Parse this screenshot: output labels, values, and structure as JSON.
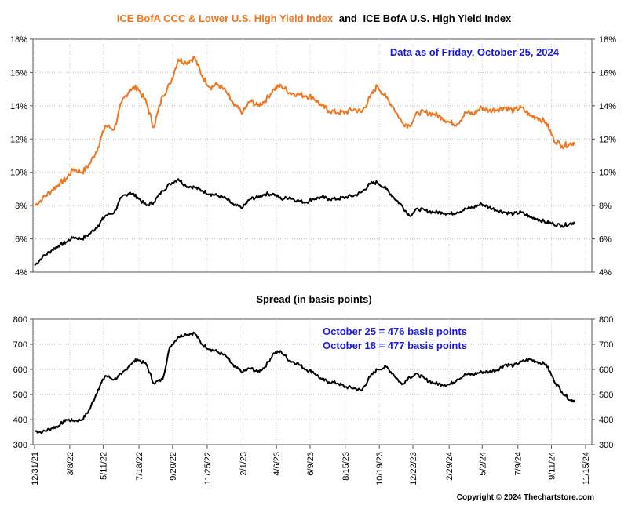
{
  "chart_data": [
    {
      "type": "line",
      "title_part1": "ICE BofA CCC & Lower U.S. High Yield Index",
      "title_joiner": "and",
      "title_part2": "ICE BofA U.S. High Yield Index",
      "annotation": "Data as of Friday, October 25, 2024",
      "ylim": [
        4,
        18
      ],
      "yticks": [
        "4%",
        "6%",
        "8%",
        "10%",
        "12%",
        "14%",
        "16%",
        "18%"
      ],
      "colors": {
        "ccc": "#ee7722",
        "hy": "#000000",
        "annotation": "#1a1ad4"
      },
      "series": [
        {
          "name": "ICE BofA CCC & Lower U.S. High Yield Index",
          "x": [
            "12/31/21",
            "1/15/22",
            "2/1/22",
            "2/15/22",
            "3/1/22",
            "3/15/22",
            "4/1/22",
            "4/15/22",
            "5/1/22",
            "5/15/22",
            "6/1/22",
            "6/15/22",
            "7/1/22",
            "7/15/22",
            "8/1/22",
            "8/15/22",
            "9/1/22",
            "9/15/22",
            "10/1/22",
            "10/15/22",
            "11/1/22",
            "11/15/22",
            "12/1/22",
            "12/15/22",
            "1/1/23",
            "1/15/23",
            "2/1/23",
            "2/15/23",
            "3/1/23",
            "3/15/23",
            "4/1/23",
            "4/15/23",
            "5/1/23",
            "5/15/23",
            "6/1/23",
            "6/15/23",
            "7/1/23",
            "7/15/23",
            "8/1/23",
            "8/15/23",
            "9/1/23",
            "9/15/23",
            "10/1/23",
            "10/15/23",
            "11/1/23",
            "11/15/23",
            "12/1/23",
            "12/15/23",
            "1/1/24",
            "1/15/24",
            "2/1/24",
            "2/15/24",
            "3/1/24",
            "3/15/24",
            "4/1/24",
            "4/15/24",
            "5/1/24",
            "5/15/24",
            "6/1/24",
            "6/15/24",
            "7/1/24",
            "7/15/24",
            "8/1/24",
            "8/15/24",
            "9/1/24",
            "9/15/24",
            "10/1/24",
            "10/15/24",
            "10/25/24"
          ],
          "values": [
            8.0,
            8.4,
            8.9,
            9.3,
            9.6,
            10.2,
            10.0,
            10.5,
            11.5,
            12.8,
            12.6,
            14.2,
            15.0,
            15.1,
            14.2,
            12.7,
            14.6,
            15.3,
            16.8,
            16.6,
            16.9,
            15.8,
            15.1,
            15.3,
            14.8,
            14.0,
            13.6,
            14.3,
            14.0,
            14.3,
            15.0,
            15.2,
            14.8,
            14.7,
            14.6,
            14.5,
            14.0,
            13.7,
            13.6,
            13.6,
            13.8,
            13.6,
            14.5,
            15.2,
            14.5,
            13.9,
            13.0,
            12.8,
            13.6,
            13.6,
            13.5,
            13.3,
            13.0,
            12.9,
            13.6,
            13.5,
            13.9,
            13.7,
            13.8,
            13.9,
            13.7,
            13.9,
            13.4,
            13.3,
            13.0,
            12.0,
            11.6,
            11.7,
            11.8
          ]
        },
        {
          "name": "ICE BofA U.S. High Yield Index",
          "x": [
            "12/31/21",
            "1/15/22",
            "2/1/22",
            "2/15/22",
            "3/1/22",
            "3/15/22",
            "4/1/22",
            "4/15/22",
            "5/1/22",
            "5/15/22",
            "6/1/22",
            "6/15/22",
            "7/1/22",
            "7/15/22",
            "8/1/22",
            "8/15/22",
            "9/1/22",
            "9/15/22",
            "10/1/22",
            "10/15/22",
            "11/1/22",
            "11/15/22",
            "12/1/22",
            "12/15/22",
            "1/1/23",
            "1/15/23",
            "2/1/23",
            "2/15/23",
            "3/1/23",
            "3/15/23",
            "4/1/23",
            "4/15/23",
            "5/1/23",
            "5/15/23",
            "6/1/23",
            "6/15/23",
            "7/1/23",
            "7/15/23",
            "8/1/23",
            "8/15/23",
            "9/1/23",
            "9/15/23",
            "10/1/23",
            "10/15/23",
            "11/1/23",
            "11/15/23",
            "12/1/23",
            "12/15/23",
            "1/1/24",
            "1/15/24",
            "2/1/24",
            "2/15/24",
            "3/1/24",
            "3/15/24",
            "4/1/24",
            "4/15/24",
            "5/1/24",
            "5/15/24",
            "6/1/24",
            "6/15/24",
            "7/1/24",
            "7/15/24",
            "8/1/24",
            "8/15/24",
            "9/1/24",
            "9/15/24",
            "10/1/24",
            "10/15/24",
            "10/25/24"
          ],
          "values": [
            4.4,
            4.9,
            5.3,
            5.6,
            5.8,
            6.1,
            6.0,
            6.3,
            6.8,
            7.4,
            7.6,
            8.5,
            8.8,
            8.5,
            8.0,
            8.2,
            8.9,
            9.3,
            9.6,
            9.2,
            9.1,
            8.9,
            8.7,
            8.6,
            8.4,
            8.0,
            7.9,
            8.4,
            8.5,
            8.7,
            8.7,
            8.4,
            8.5,
            8.3,
            8.2,
            8.4,
            8.5,
            8.4,
            8.4,
            8.5,
            8.6,
            8.8,
            9.3,
            9.4,
            9.0,
            8.5,
            8.0,
            7.4,
            7.8,
            7.7,
            7.6,
            7.6,
            7.5,
            7.6,
            7.8,
            7.9,
            8.1,
            7.9,
            7.7,
            7.6,
            7.5,
            7.6,
            7.3,
            7.2,
            7.0,
            6.9,
            6.8,
            6.9,
            7.0
          ]
        }
      ]
    },
    {
      "type": "line",
      "title": "Spread (in basis points)",
      "annotation_lines": [
        "October 25 = 476 basis points",
        "October 18 = 477 basis points"
      ],
      "ylim": [
        300,
        800
      ],
      "yticks": [
        "300",
        "400",
        "500",
        "600",
        "700",
        "800"
      ],
      "xticks": [
        "12/31/21",
        "3/8/22",
        "5/11/22",
        "7/18/22",
        "9/20/22",
        "11/25/22",
        "2/1/23",
        "4/6/23",
        "6/9/23",
        "8/15/23",
        "10/19/23",
        "12/22/23",
        "2/29/24",
        "5/2/24",
        "7/9/24",
        "9/11/24",
        "11/15/24"
      ],
      "xlim": [
        "12/31/21",
        "11/15/24"
      ],
      "colors": {
        "line": "#000000",
        "annotation": "#1a1ad4"
      },
      "series": [
        {
          "name": "Spread",
          "x": [
            "12/31/21",
            "1/15/22",
            "2/1/22",
            "2/15/22",
            "3/1/22",
            "3/15/22",
            "4/1/22",
            "4/15/22",
            "5/1/22",
            "5/15/22",
            "6/1/22",
            "6/15/22",
            "7/1/22",
            "7/15/22",
            "8/1/22",
            "8/15/22",
            "9/1/22",
            "9/15/22",
            "10/1/22",
            "10/15/22",
            "11/1/22",
            "11/15/22",
            "12/1/22",
            "12/15/22",
            "1/1/23",
            "1/15/23",
            "2/1/23",
            "2/15/23",
            "3/1/23",
            "3/15/23",
            "4/1/23",
            "4/15/23",
            "5/1/23",
            "5/15/23",
            "6/1/23",
            "6/15/23",
            "7/1/23",
            "7/15/23",
            "8/1/23",
            "8/15/23",
            "9/1/23",
            "9/15/23",
            "10/1/23",
            "10/15/23",
            "11/1/23",
            "11/15/23",
            "12/1/23",
            "12/15/23",
            "1/1/24",
            "1/15/24",
            "2/1/24",
            "2/15/24",
            "3/1/24",
            "3/15/24",
            "4/1/24",
            "4/15/24",
            "5/1/24",
            "5/15/24",
            "6/1/24",
            "6/15/24",
            "7/1/24",
            "7/15/24",
            "8/1/24",
            "8/15/24",
            "9/1/24",
            "9/15/24",
            "10/1/24",
            "10/18/24",
            "10/25/24"
          ],
          "values": [
            355,
            350,
            365,
            375,
            400,
            395,
            400,
            440,
            520,
            575,
            560,
            580,
            620,
            640,
            620,
            545,
            560,
            690,
            730,
            740,
            745,
            700,
            680,
            670,
            650,
            610,
            590,
            605,
            590,
            610,
            665,
            670,
            635,
            625,
            600,
            590,
            560,
            550,
            545,
            530,
            525,
            515,
            570,
            600,
            610,
            580,
            540,
            570,
            580,
            560,
            545,
            540,
            540,
            560,
            580,
            580,
            590,
            590,
            600,
            620,
            615,
            630,
            640,
            630,
            620,
            560,
            510,
            477,
            476
          ]
        }
      ]
    }
  ],
  "copyright": "Copyright © 2024 Thechartstore.com"
}
